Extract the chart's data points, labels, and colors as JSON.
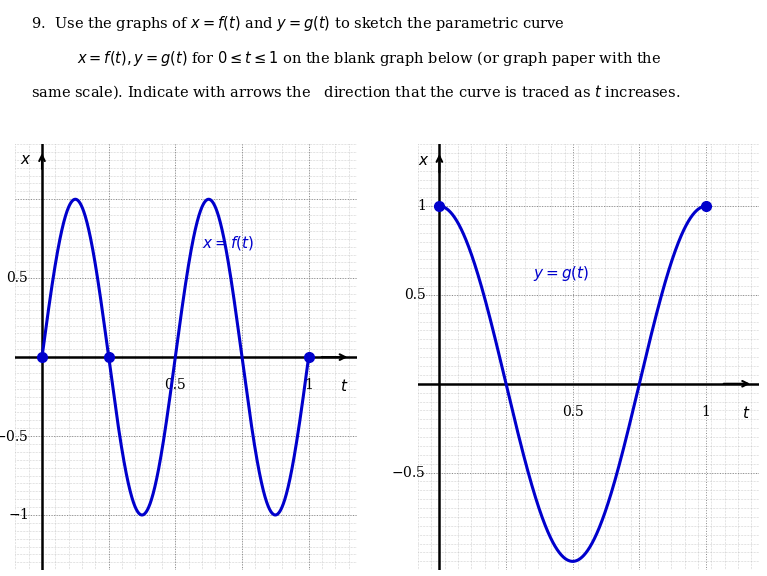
{
  "curve_color": "#0000cc",
  "dot_color": "#0000cc",
  "bg_color": "#ffffff",
  "fine_grid_color": "#aaaaaa",
  "coarse_grid_color": "#888888",
  "axis_color": "#000000",
  "dot_size": 7,
  "lw_curve": 2.2,
  "lw_axis": 1.8,
  "lw_fine_grid": 0.4,
  "lw_coarse_grid": 0.7,
  "text_fontsize": 10.5,
  "label_fontsize": 11,
  "tick_fontsize": 10
}
